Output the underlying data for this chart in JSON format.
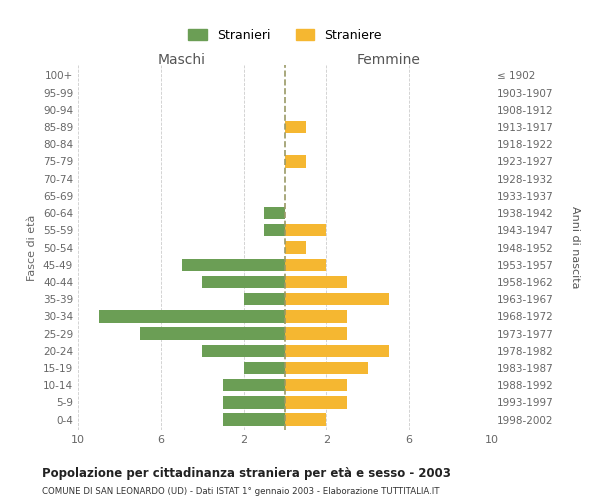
{
  "age_groups": [
    "0-4",
    "5-9",
    "10-14",
    "15-19",
    "20-24",
    "25-29",
    "30-34",
    "35-39",
    "40-44",
    "45-49",
    "50-54",
    "55-59",
    "60-64",
    "65-69",
    "70-74",
    "75-79",
    "80-84",
    "85-89",
    "90-94",
    "95-99",
    "100+"
  ],
  "birth_years": [
    "1998-2002",
    "1993-1997",
    "1988-1992",
    "1983-1987",
    "1978-1982",
    "1973-1977",
    "1968-1972",
    "1963-1967",
    "1958-1962",
    "1953-1957",
    "1948-1952",
    "1943-1947",
    "1938-1942",
    "1933-1937",
    "1928-1932",
    "1923-1927",
    "1918-1922",
    "1913-1917",
    "1908-1912",
    "1903-1907",
    "≤ 1902"
  ],
  "males": [
    3,
    3,
    3,
    2,
    4,
    7,
    9,
    2,
    4,
    5,
    0,
    1,
    1,
    0,
    0,
    0,
    0,
    0,
    0,
    0,
    0
  ],
  "females": [
    2,
    3,
    3,
    4,
    5,
    3,
    3,
    5,
    3,
    2,
    1,
    2,
    0,
    0,
    0,
    1,
    0,
    1,
    0,
    0,
    0
  ],
  "male_color": "#6b9e55",
  "female_color": "#f5b731",
  "grid_color": "#cccccc",
  "title": "Popolazione per cittadinanza straniera per età e sesso - 2003",
  "subtitle": "COMUNE DI SAN LEONARDO (UD) - Dati ISTAT 1° gennaio 2003 - Elaborazione TUTTITALIA.IT",
  "xlabel_left": "Maschi",
  "xlabel_right": "Femmine",
  "ylabel_left": "Fasce di età",
  "ylabel_right": "Anni di nascita",
  "legend_male": "Stranieri",
  "legend_female": "Straniere",
  "xlim": 10,
  "bar_height": 0.72,
  "dashed_line_color": "#aaaaaa",
  "center_line_color": "#999966"
}
